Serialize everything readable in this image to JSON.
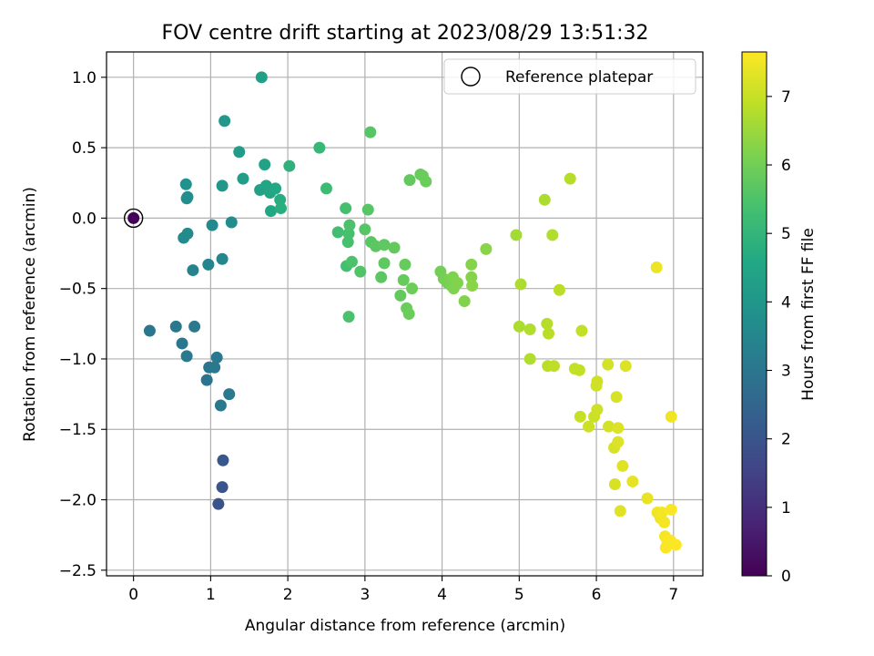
{
  "chart_data": {
    "type": "scatter",
    "title": "FOV centre drift starting at 2023/08/29 13:51:32",
    "xlabel": "Angular distance from reference (arcmin)",
    "ylabel": "Rotation from reference (arcmin)",
    "xlim": [
      -0.35,
      7.38
    ],
    "ylim": [
      -2.54,
      1.18
    ],
    "xticks": [
      0,
      1,
      2,
      3,
      4,
      5,
      6,
      7
    ],
    "yticks": [
      -2.5,
      -2.0,
      -1.5,
      -1.0,
      -0.5,
      0.0,
      0.5,
      1.0
    ],
    "xtick_labels": [
      "0",
      "1",
      "2",
      "3",
      "4",
      "5",
      "6",
      "7"
    ],
    "ytick_labels": [
      "−2.5",
      "−2.0",
      "−1.5",
      "−1.0",
      "−0.5",
      "0.0",
      "0.5",
      "1.0"
    ],
    "grid": true,
    "legend": {
      "placement": "top-right",
      "entries": [
        "Reference platepar"
      ]
    },
    "reference_marker": {
      "x": 0,
      "y": 0,
      "label": "Reference platepar"
    },
    "colorbar": {
      "label": "Hours from first FF file",
      "range": [
        0,
        7.65
      ],
      "ticks": [
        0,
        1,
        2,
        3,
        4,
        5,
        6,
        7
      ],
      "tick_labels": [
        "0",
        "1",
        "2",
        "3",
        "4",
        "5",
        "6",
        "7"
      ],
      "colormap": "viridis"
    },
    "points": [
      {
        "x": 0.0,
        "y": 0.0,
        "c": 0.05
      },
      {
        "x": 1.1,
        "y": -2.03,
        "c": 1.95
      },
      {
        "x": 1.15,
        "y": -1.91,
        "c": 2.0
      },
      {
        "x": 1.16,
        "y": -1.72,
        "c": 2.1
      },
      {
        "x": 0.21,
        "y": -0.8,
        "c": 3.0
      },
      {
        "x": 0.55,
        "y": -0.77,
        "c": 3.05
      },
      {
        "x": 0.63,
        "y": -0.89,
        "c": 3.05
      },
      {
        "x": 0.79,
        "y": -0.77,
        "c": 3.1
      },
      {
        "x": 0.69,
        "y": -0.98,
        "c": 3.1
      },
      {
        "x": 0.95,
        "y": -1.15,
        "c": 2.95
      },
      {
        "x": 0.98,
        "y": -1.06,
        "c": 3.0
      },
      {
        "x": 1.05,
        "y": -1.06,
        "c": 3.05
      },
      {
        "x": 1.08,
        "y": -0.99,
        "c": 3.1
      },
      {
        "x": 1.13,
        "y": -1.33,
        "c": 3.05
      },
      {
        "x": 1.24,
        "y": -1.25,
        "c": 3.1
      },
      {
        "x": 0.77,
        "y": -0.37,
        "c": 3.4
      },
      {
        "x": 0.97,
        "y": -0.33,
        "c": 3.45
      },
      {
        "x": 1.15,
        "y": -0.29,
        "c": 3.5
      },
      {
        "x": 1.02,
        "y": -0.05,
        "c": 3.6
      },
      {
        "x": 1.27,
        "y": -0.03,
        "c": 3.7
      },
      {
        "x": 0.65,
        "y": -0.14,
        "c": 3.6
      },
      {
        "x": 0.7,
        "y": -0.11,
        "c": 3.65
      },
      {
        "x": 0.69,
        "y": 0.14,
        "c": 3.8
      },
      {
        "x": 0.7,
        "y": 0.15,
        "c": 3.8
      },
      {
        "x": 0.68,
        "y": 0.24,
        "c": 3.85
      },
      {
        "x": 1.15,
        "y": 0.23,
        "c": 4.0
      },
      {
        "x": 1.18,
        "y": 0.69,
        "c": 4.05
      },
      {
        "x": 1.37,
        "y": 0.47,
        "c": 4.2
      },
      {
        "x": 1.42,
        "y": 0.28,
        "c": 4.25
      },
      {
        "x": 1.64,
        "y": 0.2,
        "c": 4.35
      },
      {
        "x": 1.66,
        "y": 1.0,
        "c": 4.3
      },
      {
        "x": 1.7,
        "y": 0.38,
        "c": 4.4
      },
      {
        "x": 1.72,
        "y": 0.23,
        "c": 4.45
      },
      {
        "x": 1.77,
        "y": 0.18,
        "c": 4.5
      },
      {
        "x": 1.78,
        "y": 0.05,
        "c": 4.55
      },
      {
        "x": 1.84,
        "y": 0.21,
        "c": 4.6
      },
      {
        "x": 1.9,
        "y": 0.13,
        "c": 4.75
      },
      {
        "x": 1.91,
        "y": 0.07,
        "c": 4.8
      },
      {
        "x": 2.02,
        "y": 0.37,
        "c": 4.9
      },
      {
        "x": 2.41,
        "y": 0.5,
        "c": 5.1
      },
      {
        "x": 2.5,
        "y": 0.21,
        "c": 5.2
      },
      {
        "x": 2.65,
        "y": -0.1,
        "c": 5.3
      },
      {
        "x": 2.75,
        "y": 0.07,
        "c": 5.35
      },
      {
        "x": 2.76,
        "y": -0.34,
        "c": 5.35
      },
      {
        "x": 2.78,
        "y": -0.17,
        "c": 5.4
      },
      {
        "x": 2.79,
        "y": -0.11,
        "c": 5.4
      },
      {
        "x": 2.8,
        "y": -0.05,
        "c": 5.45
      },
      {
        "x": 2.79,
        "y": -0.7,
        "c": 5.45
      },
      {
        "x": 2.83,
        "y": -0.31,
        "c": 5.5
      },
      {
        "x": 2.94,
        "y": -0.38,
        "c": 5.55
      },
      {
        "x": 3.0,
        "y": -0.08,
        "c": 5.6
      },
      {
        "x": 3.04,
        "y": 0.06,
        "c": 5.6
      },
      {
        "x": 3.08,
        "y": -0.17,
        "c": 5.65
      },
      {
        "x": 3.07,
        "y": 0.61,
        "c": 5.6
      },
      {
        "x": 3.14,
        "y": -0.2,
        "c": 5.7
      },
      {
        "x": 3.21,
        "y": -0.42,
        "c": 5.7
      },
      {
        "x": 3.25,
        "y": -0.19,
        "c": 5.75
      },
      {
        "x": 3.25,
        "y": -0.32,
        "c": 5.75
      },
      {
        "x": 3.38,
        "y": -0.21,
        "c": 5.8
      },
      {
        "x": 3.46,
        "y": -0.55,
        "c": 5.8
      },
      {
        "x": 3.5,
        "y": -0.44,
        "c": 5.85
      },
      {
        "x": 3.52,
        "y": -0.33,
        "c": 5.85
      },
      {
        "x": 3.54,
        "y": -0.64,
        "c": 5.9
      },
      {
        "x": 3.57,
        "y": -0.68,
        "c": 5.9
      },
      {
        "x": 3.58,
        "y": 0.27,
        "c": 5.8
      },
      {
        "x": 3.61,
        "y": -0.5,
        "c": 5.95
      },
      {
        "x": 3.72,
        "y": 0.31,
        "c": 5.85
      },
      {
        "x": 3.75,
        "y": 0.3,
        "c": 5.9
      },
      {
        "x": 3.79,
        "y": 0.26,
        "c": 5.9
      },
      {
        "x": 3.98,
        "y": -0.38,
        "c": 6.0
      },
      {
        "x": 4.02,
        "y": -0.43,
        "c": 6.05
      },
      {
        "x": 4.07,
        "y": -0.46,
        "c": 6.05
      },
      {
        "x": 4.1,
        "y": -0.44,
        "c": 6.1
      },
      {
        "x": 4.12,
        "y": -0.48,
        "c": 6.1
      },
      {
        "x": 4.14,
        "y": -0.42,
        "c": 6.15
      },
      {
        "x": 4.15,
        "y": -0.5,
        "c": 6.15
      },
      {
        "x": 4.2,
        "y": -0.46,
        "c": 6.2
      },
      {
        "x": 4.29,
        "y": -0.59,
        "c": 6.2
      },
      {
        "x": 4.38,
        "y": -0.33,
        "c": 6.25
      },
      {
        "x": 4.38,
        "y": -0.42,
        "c": 6.25
      },
      {
        "x": 4.39,
        "y": -0.48,
        "c": 6.3
      },
      {
        "x": 4.57,
        "y": -0.22,
        "c": 6.3
      },
      {
        "x": 4.96,
        "y": -0.12,
        "c": 6.6
      },
      {
        "x": 5.0,
        "y": -0.77,
        "c": 6.7
      },
      {
        "x": 5.02,
        "y": -0.47,
        "c": 6.7
      },
      {
        "x": 5.14,
        "y": -1.0,
        "c": 6.75
      },
      {
        "x": 5.14,
        "y": -0.79,
        "c": 6.75
      },
      {
        "x": 5.33,
        "y": 0.13,
        "c": 6.7
      },
      {
        "x": 5.36,
        "y": -0.75,
        "c": 6.8
      },
      {
        "x": 5.37,
        "y": -1.05,
        "c": 6.85
      },
      {
        "x": 5.38,
        "y": -0.82,
        "c": 6.85
      },
      {
        "x": 5.43,
        "y": -0.12,
        "c": 6.75
      },
      {
        "x": 5.45,
        "y": -1.05,
        "c": 6.9
      },
      {
        "x": 5.52,
        "y": -0.51,
        "c": 6.85
      },
      {
        "x": 5.66,
        "y": 0.28,
        "c": 6.8
      },
      {
        "x": 5.72,
        "y": -1.07,
        "c": 6.95
      },
      {
        "x": 5.78,
        "y": -1.08,
        "c": 6.95
      },
      {
        "x": 5.79,
        "y": -1.41,
        "c": 7.0
      },
      {
        "x": 5.81,
        "y": -0.8,
        "c": 6.95
      },
      {
        "x": 5.9,
        "y": -1.48,
        "c": 7.05
      },
      {
        "x": 5.97,
        "y": -1.41,
        "c": 7.05
      },
      {
        "x": 6.0,
        "y": -1.19,
        "c": 7.1
      },
      {
        "x": 6.01,
        "y": -1.16,
        "c": 7.1
      },
      {
        "x": 6.01,
        "y": -1.36,
        "c": 7.1
      },
      {
        "x": 6.15,
        "y": -1.04,
        "c": 7.15
      },
      {
        "x": 6.16,
        "y": -1.48,
        "c": 7.15
      },
      {
        "x": 6.23,
        "y": -1.63,
        "c": 7.2
      },
      {
        "x": 6.24,
        "y": -1.89,
        "c": 7.2
      },
      {
        "x": 6.26,
        "y": -1.27,
        "c": 7.2
      },
      {
        "x": 6.28,
        "y": -1.49,
        "c": 7.25
      },
      {
        "x": 6.28,
        "y": -1.59,
        "c": 7.25
      },
      {
        "x": 6.31,
        "y": -2.08,
        "c": 7.3
      },
      {
        "x": 6.34,
        "y": -1.76,
        "c": 7.3
      },
      {
        "x": 6.38,
        "y": -1.05,
        "c": 7.25
      },
      {
        "x": 6.47,
        "y": -1.87,
        "c": 7.35
      },
      {
        "x": 6.66,
        "y": -1.99,
        "c": 7.4
      },
      {
        "x": 6.78,
        "y": -0.35,
        "c": 7.45
      },
      {
        "x": 6.79,
        "y": -2.09,
        "c": 7.5
      },
      {
        "x": 6.83,
        "y": -2.13,
        "c": 7.5
      },
      {
        "x": 6.85,
        "y": -2.09,
        "c": 7.55
      },
      {
        "x": 6.88,
        "y": -2.16,
        "c": 7.55
      },
      {
        "x": 6.89,
        "y": -2.26,
        "c": 7.55
      },
      {
        "x": 6.9,
        "y": -2.34,
        "c": 7.6
      },
      {
        "x": 6.92,
        "y": -2.3,
        "c": 7.6
      },
      {
        "x": 6.96,
        "y": -2.29,
        "c": 7.6
      },
      {
        "x": 6.97,
        "y": -2.07,
        "c": 7.6
      },
      {
        "x": 6.97,
        "y": -1.41,
        "c": 7.5
      },
      {
        "x": 7.03,
        "y": -2.32,
        "c": 7.65
      }
    ]
  }
}
